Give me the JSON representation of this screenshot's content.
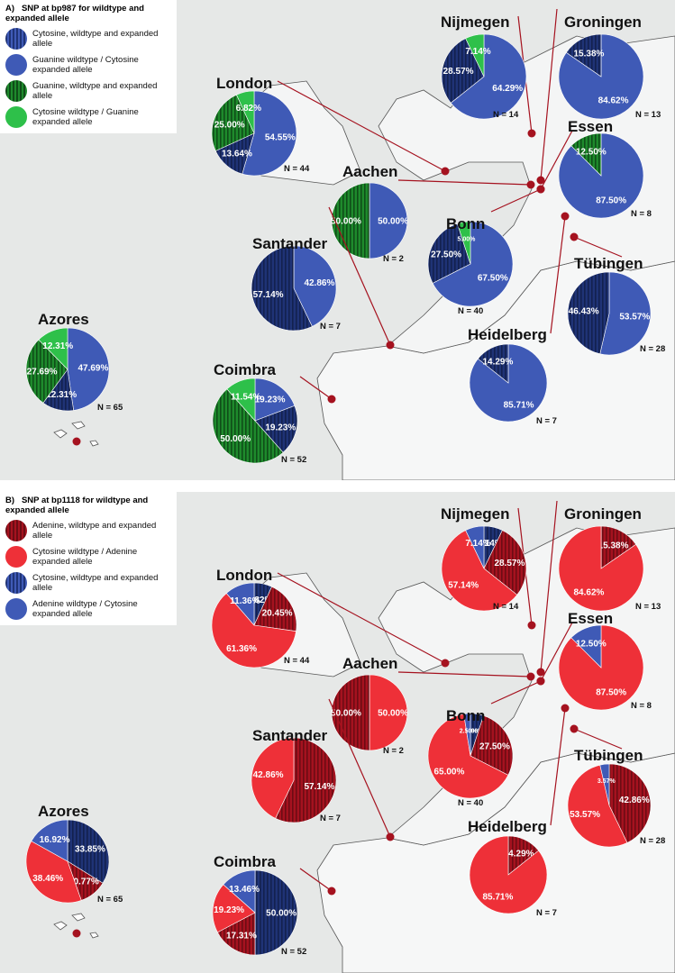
{
  "colors": {
    "blue": "#3f5ab6",
    "green_light": "#2ec04a",
    "red": "#ee3038",
    "dot": "#a5121f",
    "line": "#a5121f",
    "map_land": "#e4e7e6",
    "sea": "#ffffff"
  },
  "panels": [
    {
      "label": "A)",
      "legend_title": "SNP at bp987 for wildtype and expanded allele",
      "legend": [
        {
          "label": "Cytosine, wildtype and expanded allele",
          "color": "#1f3376",
          "striped": true
        },
        {
          "label": "Guanine wildtype / Cytosine expanded allele",
          "color": "#3f5ab6",
          "striped": false
        },
        {
          "label": "Guanine, wildtype and expanded allele",
          "color": "#1e8a2c",
          "striped": true
        },
        {
          "label": "Cytosine wildtype / Guanine expanded allele",
          "color": "#2ec04a",
          "striped": false
        }
      ],
      "cities": [
        {
          "name": "Nijmegen",
          "n": "N = 14",
          "slices": [
            {
              "v": 64.29,
              "c": 1,
              "t": "64.29%"
            },
            {
              "v": 28.57,
              "c": 0,
              "t": "28.57%"
            },
            {
              "v": 7.14,
              "c": 3,
              "t": "7.14%"
            }
          ]
        },
        {
          "name": "Groningen",
          "n": "N = 13",
          "slices": [
            {
              "v": 84.62,
              "c": 1,
              "t": "84.62%"
            },
            {
              "v": 15.38,
              "c": 0,
              "t": "15.38%"
            }
          ]
        },
        {
          "name": "London",
          "n": "N = 44",
          "slices": [
            {
              "v": 54.55,
              "c": 1,
              "t": "54.55%"
            },
            {
              "v": 13.64,
              "c": 0,
              "t": "13.64%"
            },
            {
              "v": 25.0,
              "c": 2,
              "t": "25.00%"
            },
            {
              "v": 6.82,
              "c": 3,
              "t": "6.82%"
            }
          ]
        },
        {
          "name": "Essen",
          "n": "N = 8",
          "slices": [
            {
              "v": 87.5,
              "c": 1,
              "t": "87.50%"
            },
            {
              "v": 12.5,
              "c": 2,
              "t": "12.50%"
            }
          ]
        },
        {
          "name": "Aachen",
          "n": "N = 2",
          "slices": [
            {
              "v": 50.0,
              "c": 1,
              "t": "50.00%"
            },
            {
              "v": 50.0,
              "c": 2,
              "t": "50.00%"
            }
          ]
        },
        {
          "name": "Bonn",
          "n": "N = 40",
          "slices": [
            {
              "v": 67.5,
              "c": 1,
              "t": "67.50%"
            },
            {
              "v": 27.5,
              "c": 0,
              "t": "27.50%"
            },
            {
              "v": 5.0,
              "c": 3,
              "t": "5.00%"
            }
          ]
        },
        {
          "name": "Santander",
          "n": "N = 7",
          "slices": [
            {
              "v": 42.86,
              "c": 1,
              "t": "42.86%"
            },
            {
              "v": 57.14,
              "c": 0,
              "t": "57.14%"
            }
          ]
        },
        {
          "name": "Tübingen",
          "n": "N = 28",
          "slices": [
            {
              "v": 53.57,
              "c": 1,
              "t": "53.57%"
            },
            {
              "v": 46.43,
              "c": 0,
              "t": "46.43%"
            }
          ]
        },
        {
          "name": "Azores",
          "n": "N = 65",
          "slices": [
            {
              "v": 47.69,
              "c": 1,
              "t": "47.69%"
            },
            {
              "v": 12.31,
              "c": 0,
              "t": "12.31%"
            },
            {
              "v": 27.69,
              "c": 2,
              "t": "27.69%"
            },
            {
              "v": 12.31,
              "c": 3,
              "t": "12.31%"
            }
          ]
        },
        {
          "name": "Heidelberg",
          "n": "N = 7",
          "slices": [
            {
              "v": 85.71,
              "c": 1,
              "t": "85.71%"
            },
            {
              "v": 14.29,
              "c": 0,
              "t": "14.29%"
            }
          ]
        },
        {
          "name": "Coimbra",
          "n": "N = 52",
          "slices": [
            {
              "v": 19.23,
              "c": 1,
              "t": "19.23%"
            },
            {
              "v": 19.23,
              "c": 0,
              "t": "19.23%"
            },
            {
              "v": 50.0,
              "c": 2,
              "t": "50.00%"
            },
            {
              "v": 11.54,
              "c": 3,
              "t": "11.54%"
            }
          ]
        }
      ]
    },
    {
      "label": "B)",
      "legend_title": "SNP at bp1118 for wildtype and expanded allele",
      "legend": [
        {
          "label": "Adenine, wildtype and expanded allele",
          "color": "#a5121f",
          "striped": true
        },
        {
          "label": "Cytosine wildtype / Adenine expanded allele",
          "color": "#ee3038",
          "striped": false
        },
        {
          "label": "Cytosine, wildtype and expanded allele",
          "color": "#1f3376",
          "striped": true
        },
        {
          "label": "Adenine wildtype / Cytosine expanded allele",
          "color": "#3f5ab6",
          "striped": false
        }
      ],
      "cities": [
        {
          "name": "Nijmegen",
          "n": "N = 14",
          "slices": [
            {
              "v": 7.14,
              "c": 2,
              "t": "7.14%"
            },
            {
              "v": 28.57,
              "c": 0,
              "t": "28.57%"
            },
            {
              "v": 57.14,
              "c": 1,
              "t": "57.14%"
            },
            {
              "v": 7.14,
              "c": 3,
              "t": "7.14%"
            }
          ]
        },
        {
          "name": "Groningen",
          "n": "N = 13",
          "slices": [
            {
              "v": 15.38,
              "c": 0,
              "t": "15.38%"
            },
            {
              "v": 84.62,
              "c": 1,
              "t": "84.62%"
            }
          ]
        },
        {
          "name": "London",
          "n": "N = 44",
          "slices": [
            {
              "v": 6.82,
              "c": 2,
              "t": "6.82%"
            },
            {
              "v": 20.45,
              "c": 0,
              "t": "20.45%"
            },
            {
              "v": 61.36,
              "c": 1,
              "t": "61.36%"
            },
            {
              "v": 11.36,
              "c": 3,
              "t": "11.36%"
            }
          ]
        },
        {
          "name": "Essen",
          "n": "N = 8",
          "slices": [
            {
              "v": 87.5,
              "c": 1,
              "t": "87.50%"
            },
            {
              "v": 12.5,
              "c": 3,
              "t": "12.50%"
            }
          ]
        },
        {
          "name": "Aachen",
          "n": "N = 2",
          "slices": [
            {
              "v": 50.0,
              "c": 1,
              "t": "50.00%"
            },
            {
              "v": 50.0,
              "c": 0,
              "t": "50.00%"
            }
          ]
        },
        {
          "name": "Bonn",
          "n": "N = 40",
          "slices": [
            {
              "v": 5.0,
              "c": 2,
              "t": "5.00%"
            },
            {
              "v": 27.5,
              "c": 0,
              "t": "27.50%"
            },
            {
              "v": 65.0,
              "c": 1,
              "t": "65.00%"
            },
            {
              "v": 2.5,
              "c": 3,
              "t": "2.50%"
            }
          ]
        },
        {
          "name": "Santander",
          "n": "N = 7",
          "slices": [
            {
              "v": 57.14,
              "c": 0,
              "t": "57.14%"
            },
            {
              "v": 42.86,
              "c": 1,
              "t": "42.86%"
            }
          ]
        },
        {
          "name": "Tübingen",
          "n": "N = 28",
          "slices": [
            {
              "v": 42.86,
              "c": 0,
              "t": "42.86%"
            },
            {
              "v": 53.57,
              "c": 1,
              "t": "53.57%"
            },
            {
              "v": 3.57,
              "c": 3,
              "t": "3.57%"
            }
          ]
        },
        {
          "name": "Azores",
          "n": "N = 65",
          "slices": [
            {
              "v": 33.85,
              "c": 2,
              "t": "33.85%"
            },
            {
              "v": 10.77,
              "c": 0,
              "t": "10.77%"
            },
            {
              "v": 38.46,
              "c": 1,
              "t": "38.46%"
            },
            {
              "v": 16.92,
              "c": 3,
              "t": "16.92%"
            }
          ]
        },
        {
          "name": "Heidelberg",
          "n": "N = 7",
          "slices": [
            {
              "v": 14.29,
              "c": 0,
              "t": "14.29%"
            },
            {
              "v": 85.71,
              "c": 1,
              "t": "85.71%"
            }
          ]
        },
        {
          "name": "Coimbra",
          "n": "N = 52",
          "slices": [
            {
              "v": 50.0,
              "c": 2,
              "t": "50.00%"
            },
            {
              "v": 17.31,
              "c": 0,
              "t": "17.31%"
            },
            {
              "v": 19.23,
              "c": 1,
              "t": "19.23%"
            },
            {
              "v": 13.46,
              "c": 3,
              "t": "13.46%"
            }
          ]
        }
      ]
    }
  ]
}
